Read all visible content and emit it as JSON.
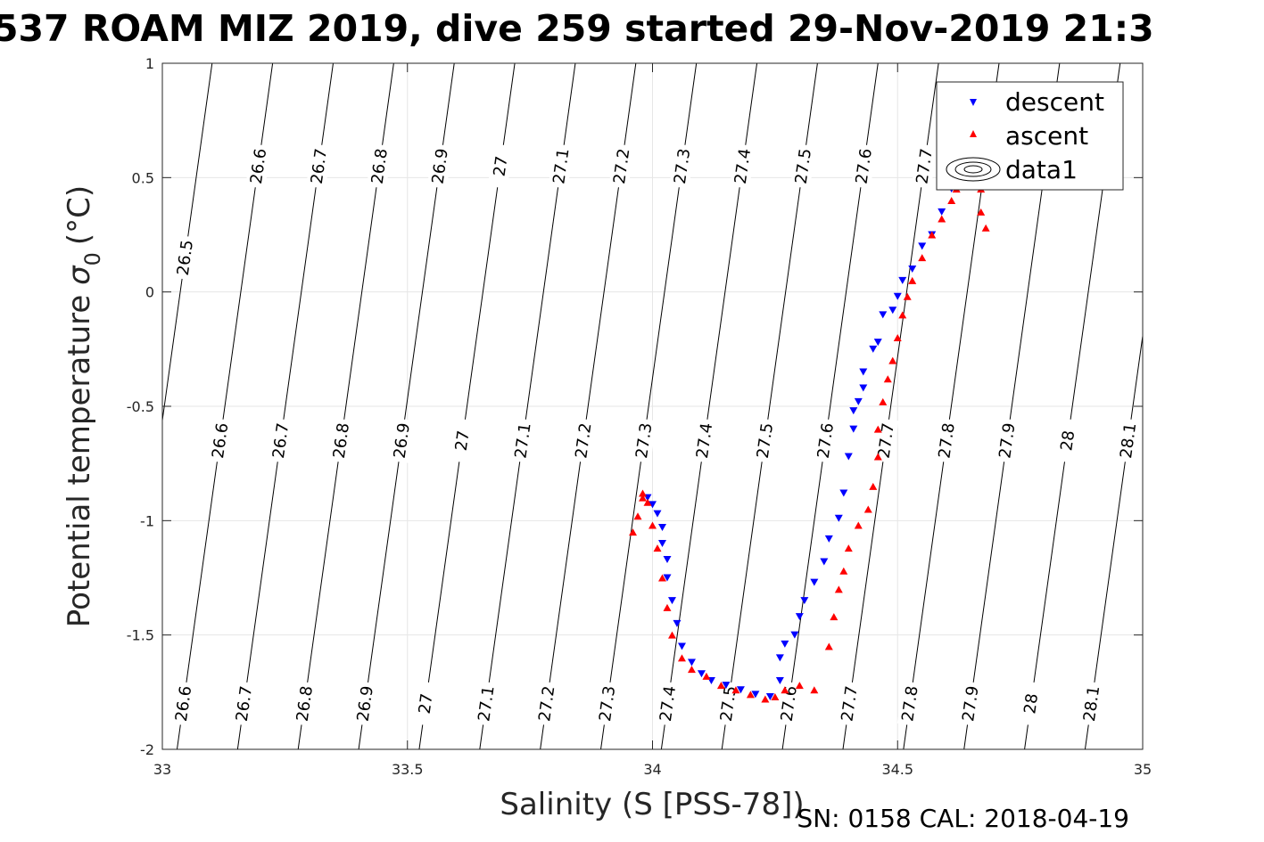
{
  "chart_data": {
    "type": "scatter",
    "title": "537 ROAM MIZ 2019, dive 259 started 29-Nov-2019 21:3",
    "xlabel": "Salinity (S [PSS-78])",
    "ylabel": "Potential temperature",
    "ylabel_symbol": "σ",
    "ylabel_sub": "0",
    "ylabel_unit": "(°C)",
    "footer": "SN: 0158  CAL: 2018-04-19",
    "xlim": [
      33,
      35
    ],
    "ylim": [
      -2,
      1
    ],
    "x_ticks": [
      33,
      33.5,
      34,
      34.5,
      35
    ],
    "x_tick_labels": [
      "33",
      "33.5",
      "34",
      "34.5",
      "35"
    ],
    "y_ticks": [
      -2,
      -1.5,
      -1,
      -0.5,
      0,
      0.5,
      1
    ],
    "y_tick_labels": [
      "-2",
      "-1.5",
      "-1",
      "-0.5",
      "0",
      "0.5",
      "1"
    ],
    "grid": true,
    "legend_position": "top-right",
    "legend": [
      "descent",
      "ascent",
      "data1"
    ],
    "colors": {
      "descent": "#0000ff",
      "ascent": "#ff0000",
      "contour": "#000000",
      "grid": "#e6e6e6"
    },
    "contours": {
      "levels": [
        26.5,
        26.6,
        26.7,
        26.8,
        26.9,
        27,
        27.1,
        27.2,
        27.3,
        27.4,
        27.5,
        27.6,
        27.7,
        27.8,
        27.9,
        28,
        28.1
      ],
      "level_labels": [
        "26.5",
        "26.6",
        "26.7",
        "26.8",
        "26.9",
        "27",
        "27.1",
        "27.2",
        "27.3",
        "27.4",
        "27.5",
        "27.6",
        "27.7",
        "27.8",
        "27.9",
        "28",
        "28.1"
      ],
      "label_rows": [
        {
          "levels": [
            "26.6",
            "26.7",
            "26.8",
            "26.9",
            "27",
            "27.1",
            "27.2",
            "27.3",
            "27.4",
            "27.5",
            "27.6",
            "27.7"
          ]
        },
        {
          "levels": [
            "26.6",
            "26.7",
            "26.8",
            "26.9",
            "27",
            "27.1",
            "27.2",
            "27.3",
            "27.4",
            "27.5",
            "27.6",
            "27.7",
            "27.8",
            "27.9",
            "28",
            "28.1"
          ]
        },
        {
          "levels": [
            "26.6",
            "26.7",
            "26.8",
            "26.9",
            "27",
            "27.1",
            "27.2",
            "27.3",
            "27.4",
            "27.5",
            "27.6",
            "27.7",
            "27.8",
            "27.9",
            "28",
            "28.1"
          ]
        }
      ],
      "extra_labels": [
        "26.5"
      ]
    },
    "series": [
      {
        "name": "descent",
        "marker": "triangle-down",
        "x": [
          33.99,
          34.0,
          34.01,
          34.02,
          34.02,
          34.03,
          34.03,
          34.04,
          34.05,
          34.06,
          34.08,
          34.1,
          34.12,
          34.15,
          34.18,
          34.21,
          34.24,
          34.26,
          34.26,
          34.27,
          34.29,
          34.3,
          34.31,
          34.33,
          34.35,
          34.36,
          34.38,
          34.39,
          34.4,
          34.41,
          34.41,
          34.42,
          34.43,
          34.43,
          34.45,
          34.46,
          34.47,
          34.49,
          34.5,
          34.51,
          34.53,
          34.55,
          34.57,
          34.59,
          34.61
        ],
        "y": [
          -0.9,
          -0.93,
          -0.97,
          -1.03,
          -1.1,
          -1.17,
          -1.25,
          -1.35,
          -1.45,
          -1.55,
          -1.62,
          -1.67,
          -1.7,
          -1.72,
          -1.74,
          -1.76,
          -1.77,
          -1.7,
          -1.6,
          -1.54,
          -1.5,
          -1.42,
          -1.35,
          -1.27,
          -1.18,
          -1.08,
          -0.99,
          -0.88,
          -0.72,
          -0.6,
          -0.52,
          -0.48,
          -0.42,
          -0.35,
          -0.25,
          -0.22,
          -0.1,
          -0.08,
          -0.02,
          0.05,
          0.1,
          0.2,
          0.25,
          0.35,
          0.45
        ]
      },
      {
        "name": "ascent",
        "marker": "triangle-up",
        "x": [
          33.96,
          33.97,
          33.98,
          33.98,
          33.99,
          34.0,
          34.01,
          34.02,
          34.03,
          34.04,
          34.06,
          34.08,
          34.11,
          34.14,
          34.17,
          34.2,
          34.23,
          34.25,
          34.27,
          34.3,
          34.33,
          34.36,
          34.37,
          34.38,
          34.39,
          34.4,
          34.42,
          34.44,
          34.45,
          34.46,
          34.46,
          34.47,
          34.48,
          34.49,
          34.5,
          34.51,
          34.52,
          34.53,
          34.55,
          34.57,
          34.59,
          34.61,
          34.62,
          34.67,
          34.67,
          34.68
        ],
        "y": [
          -1.05,
          -0.98,
          -0.9,
          -0.88,
          -0.92,
          -1.02,
          -1.12,
          -1.25,
          -1.38,
          -1.5,
          -1.6,
          -1.65,
          -1.68,
          -1.72,
          -1.74,
          -1.76,
          -1.78,
          -1.77,
          -1.74,
          -1.72,
          -1.74,
          -1.55,
          -1.42,
          -1.3,
          -1.22,
          -1.12,
          -1.02,
          -0.95,
          -0.85,
          -0.72,
          -0.6,
          -0.48,
          -0.38,
          -0.3,
          -0.2,
          -0.1,
          -0.02,
          0.05,
          0.15,
          0.25,
          0.32,
          0.4,
          0.45,
          0.45,
          0.35,
          0.28
        ]
      }
    ]
  }
}
